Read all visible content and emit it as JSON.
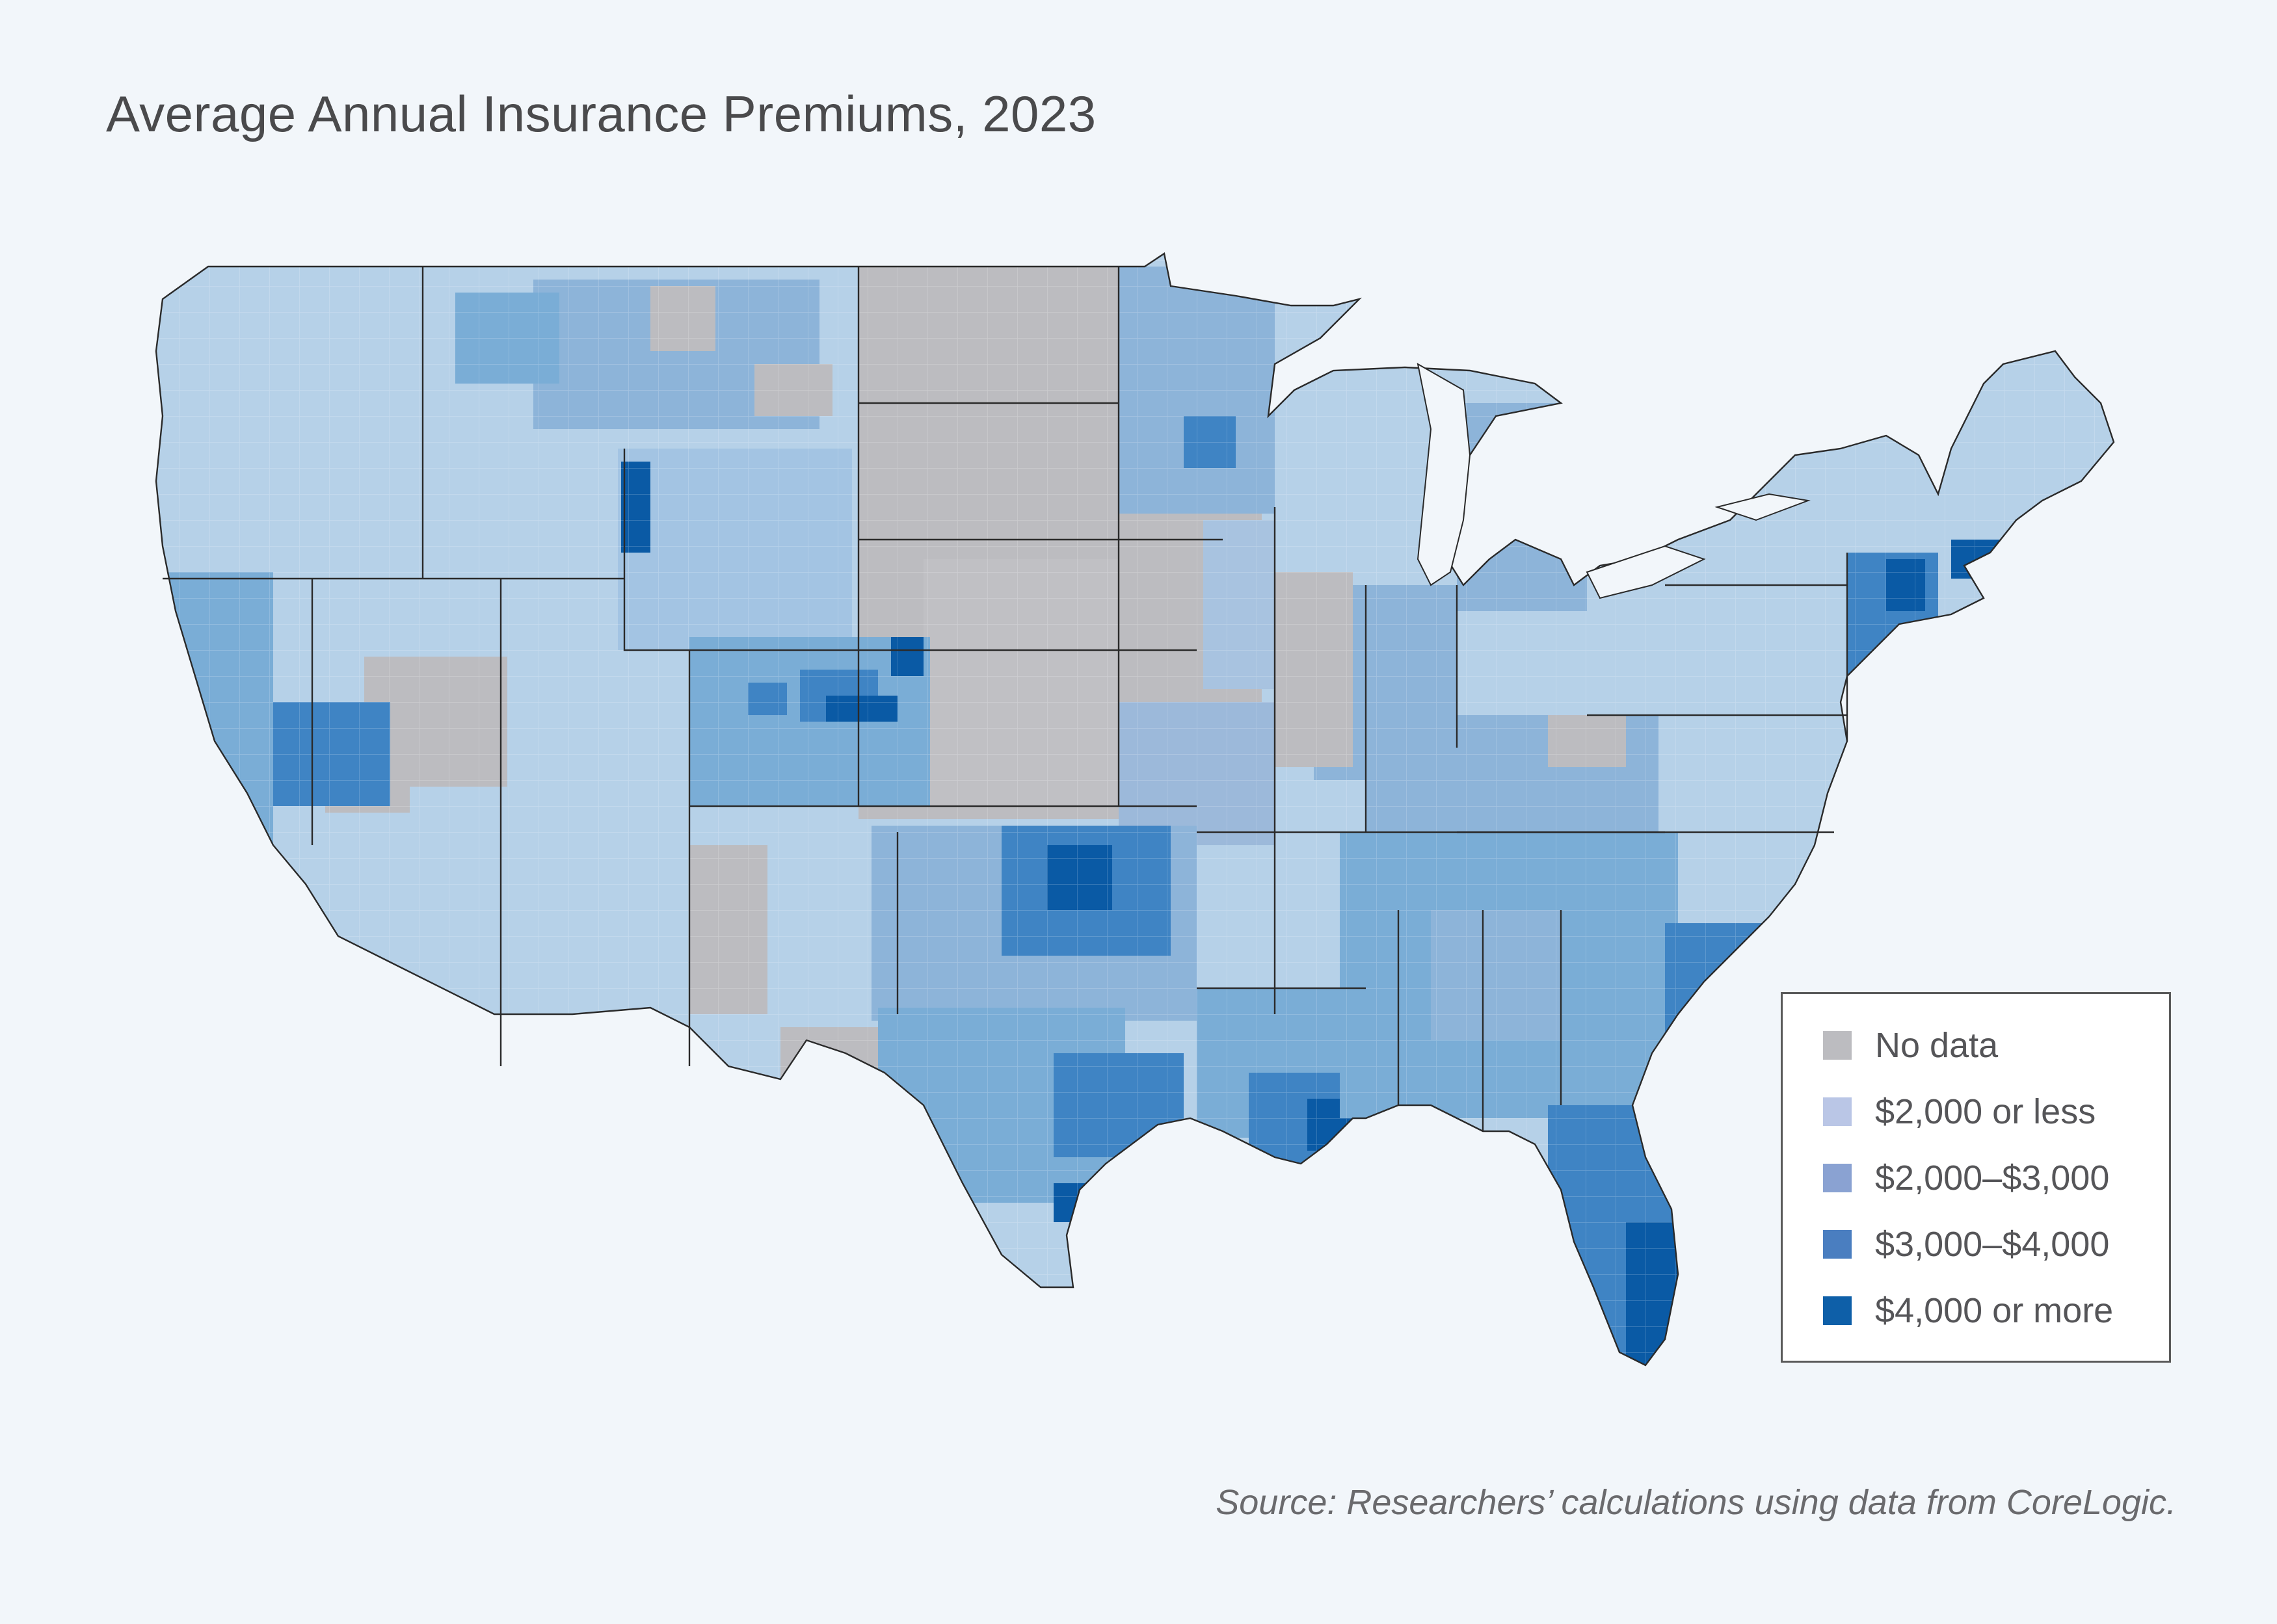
{
  "title": "Average Annual Insurance Premiums, 2023",
  "legend": {
    "items": [
      {
        "label": "No data",
        "color": "#bcbcc0"
      },
      {
        "label": "$2,000 or less",
        "color": "#bac6e6"
      },
      {
        "label": "$2,000–$3,000",
        "color": "#8aa2d2"
      },
      {
        "label": "$3,000–$4,000",
        "color": "#4a7ec0"
      },
      {
        "label": "$4,000 or more",
        "color": "#0e5fa8"
      }
    ]
  },
  "map": {
    "region": "Contiguous United States",
    "unit": "county",
    "fill_colors": {
      "no_data": "#bcbcc0",
      "tier1": "#b6d1e8",
      "tier2": "#7aadd6",
      "tier3": "#3f84c4",
      "tier4": "#0a5aa5"
    }
  },
  "source": "Source: Researchers’ calculations using data from CoreLogic."
}
